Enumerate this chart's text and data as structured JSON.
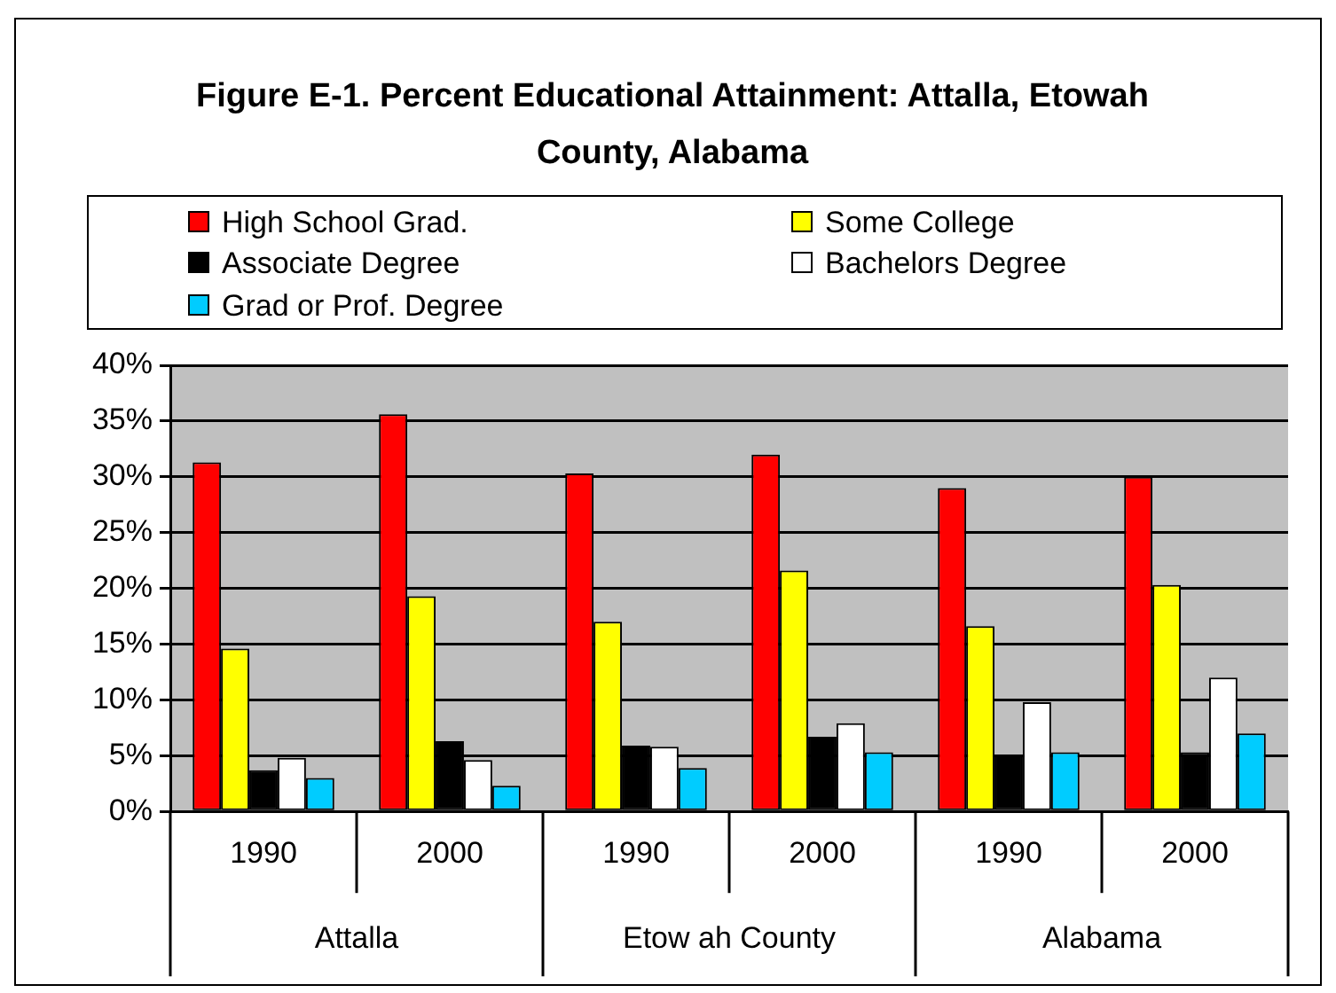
{
  "chart_data": {
    "type": "bar",
    "title": "Figure E-1. Percent Educational Attainment: Attalla, Etowah County, Alabama",
    "categories": [
      "1990",
      "2000",
      "1990",
      "2000",
      "1990",
      "2000"
    ],
    "series": [
      {
        "name": "High School Grad.",
        "color": "#ff0000",
        "values": [
          31.3,
          35.6,
          30.3,
          32.0,
          29.0,
          30.0
        ]
      },
      {
        "name": "Some College",
        "color": "#ffff00",
        "values": [
          14.6,
          19.3,
          17.0,
          21.6,
          16.6,
          20.3
        ]
      },
      {
        "name": "Associate Degree",
        "color": "#000000",
        "values": [
          3.7,
          6.3,
          5.9,
          6.7,
          5.1,
          5.3
        ]
      },
      {
        "name": "Bachelors Degree",
        "color": "#ffffff",
        "values": [
          4.8,
          4.6,
          5.8,
          7.9,
          9.8,
          12.0
        ]
      },
      {
        "name": "Grad or Prof. Degree",
        "color": "#00ccff",
        "values": [
          3.0,
          2.3,
          3.9,
          5.3,
          5.3,
          7.0
        ]
      }
    ],
    "annotations": [
      "Attalla",
      "Etow ah County",
      "Alabama"
    ],
    "ylim": [
      0,
      40
    ],
    "yticks": [
      {
        "value": 0,
        "label": "0%"
      },
      {
        "value": 5,
        "label": "5%"
      },
      {
        "value": 10,
        "label": "10%"
      },
      {
        "value": 15,
        "label": "15%"
      },
      {
        "value": 20,
        "label": "20%"
      },
      {
        "value": 25,
        "label": "25%"
      },
      {
        "value": 30,
        "label": "30%"
      },
      {
        "value": 35,
        "label": "35%"
      },
      {
        "value": 40,
        "label": "40%"
      }
    ],
    "grid": "y",
    "legend": "top"
  }
}
